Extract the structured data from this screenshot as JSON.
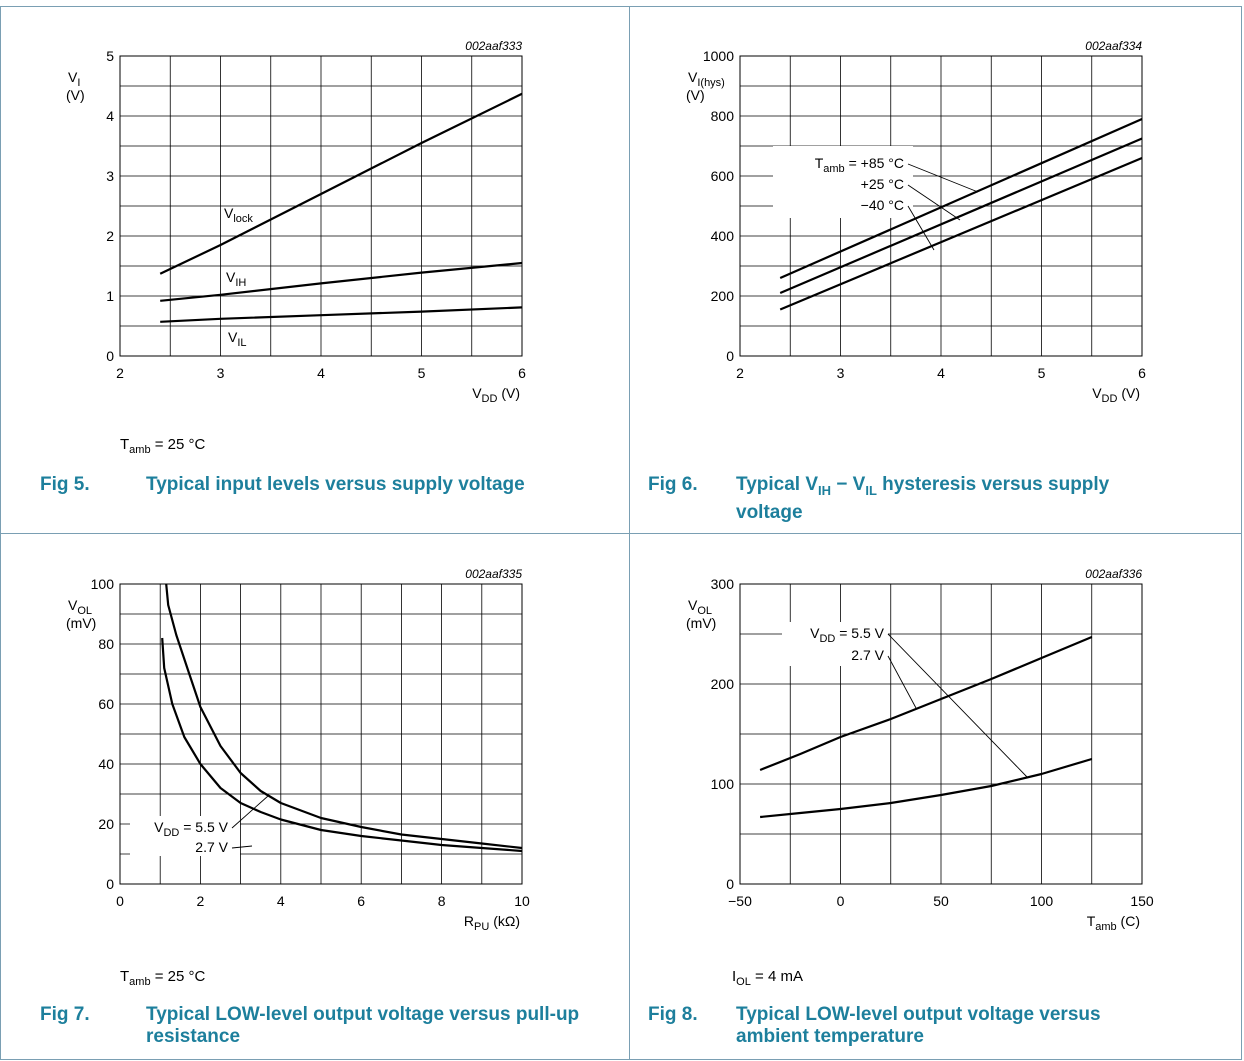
{
  "figures": [
    {
      "fig_label": "Fig 5.",
      "title": "Typical input levels versus supply voltage",
      "condition": "T_amb = 25 °C",
      "chart_data": {
        "type": "line",
        "code": "002aaf333",
        "xlim": [
          2,
          6
        ],
        "ylim": [
          0,
          5
        ],
        "xticks": [
          "2",
          "3",
          "4",
          "5",
          "6"
        ],
        "yticks": [
          "0",
          "1",
          "2",
          "3",
          "4",
          "5"
        ],
        "xlabel": "V_DD (V)",
        "ylabel": [
          "V_I",
          "(V)"
        ],
        "grid": true,
        "series": [
          {
            "name": "V_lock",
            "x": [
              2.4,
              3.0,
              4.0,
              5.0,
              6.0
            ],
            "y": [
              1.37,
              1.85,
              2.7,
              3.55,
              4.37
            ]
          },
          {
            "name": "V_IH",
            "x": [
              2.4,
              3.0,
              4.0,
              5.0,
              6.0
            ],
            "y": [
              0.92,
              1.02,
              1.21,
              1.39,
              1.55
            ]
          },
          {
            "name": "V_IL",
            "x": [
              2.4,
              3.0,
              4.0,
              5.0,
              6.0
            ],
            "y": [
              0.57,
              0.62,
              0.68,
              0.74,
              0.81
            ]
          }
        ]
      }
    },
    {
      "fig_label": "Fig 6.",
      "title": "Typical V_IH − V_IL hysteresis versus supply voltage",
      "condition": "",
      "chart_data": {
        "type": "line",
        "code": "002aaf334",
        "xlim": [
          2,
          6
        ],
        "ylim": [
          0,
          1000
        ],
        "xticks": [
          "2",
          "3",
          "4",
          "5",
          "6"
        ],
        "yticks": [
          "0",
          "200",
          "400",
          "600",
          "800",
          "1000"
        ],
        "xlabel": "V_DD (V)",
        "ylabel": [
          "V_I(hys)",
          "(V)"
        ],
        "grid": true,
        "series": [
          {
            "name": "T_amb = +85 °C",
            "x": [
              2.4,
              6.0
            ],
            "y": [
              260,
              790
            ]
          },
          {
            "name": "+25 °C",
            "x": [
              2.4,
              6.0
            ],
            "y": [
              210,
              725
            ]
          },
          {
            "name": "−40 °C",
            "x": [
              2.4,
              6.0
            ],
            "y": [
              155,
              660
            ]
          }
        ]
      }
    },
    {
      "fig_label": "Fig 7.",
      "title": "Typical LOW-level output voltage versus pull-up resistance",
      "condition": "T_amb = 25 °C",
      "chart_data": {
        "type": "line",
        "code": "002aaf335",
        "xlim": [
          0,
          10
        ],
        "ylim": [
          0,
          100
        ],
        "xticks": [
          "0",
          "2",
          "4",
          "6",
          "8",
          "10"
        ],
        "yticks": [
          "0",
          "20",
          "40",
          "60",
          "80",
          "100"
        ],
        "xlabel": "R_PU (kΩ)",
        "ylabel": [
          "V_OL",
          "(mV)"
        ],
        "grid": true,
        "series": [
          {
            "name": "V_DD = 5.5 V",
            "x": [
              1.15,
              1.2,
              1.4,
              1.7,
              2.0,
              2.5,
              3.0,
              3.5,
              4.0,
              5.0,
              6.0,
              7.0,
              8.0,
              9.0,
              10.0
            ],
            "y": [
              100,
              93,
              83,
              71,
              59,
              46,
              37,
              31,
              27,
              22,
              19,
              16.5,
              15,
              13.5,
              12
            ]
          },
          {
            "name": "2.7 V",
            "x": [
              1.05,
              1.1,
              1.3,
              1.6,
              2.0,
              2.5,
              3.0,
              3.5,
              4.0,
              5.0,
              6.0,
              7.0,
              8.0,
              9.0,
              10.0
            ],
            "y": [
              82,
              72,
              60,
              49,
              40,
              32,
              27,
              24,
              21.5,
              18,
              16,
              14.5,
              13,
              12,
              11
            ]
          }
        ]
      }
    },
    {
      "fig_label": "Fig 8.",
      "title": "Typical LOW-level output voltage versus ambient temperature",
      "condition": "I_OL = 4 mA",
      "chart_data": {
        "type": "line",
        "code": "002aaf336",
        "xlim": [
          -50,
          150
        ],
        "ylim": [
          0,
          300
        ],
        "xticks": [
          "−50",
          "0",
          "50",
          "100",
          "150"
        ],
        "yticks": [
          "0",
          "100",
          "200",
          "300"
        ],
        "xlabel": "T_amb (C)",
        "ylabel": [
          "V_OL",
          "(mV)"
        ],
        "grid": true,
        "series": [
          {
            "name": "V_DD = 5.5 V",
            "x": [
              -40,
              -20,
              0,
              25,
              50,
              75,
              100,
              125
            ],
            "y": [
              114,
              130,
              147,
              165,
              185,
              205,
              226,
              247
            ]
          },
          {
            "name": "2.7 V",
            "x": [
              -40,
              -20,
              0,
              25,
              50,
              75,
              100,
              125
            ],
            "y": [
              67,
              71,
              75,
              81,
              89,
              98,
              110,
              125
            ]
          }
        ]
      }
    }
  ]
}
